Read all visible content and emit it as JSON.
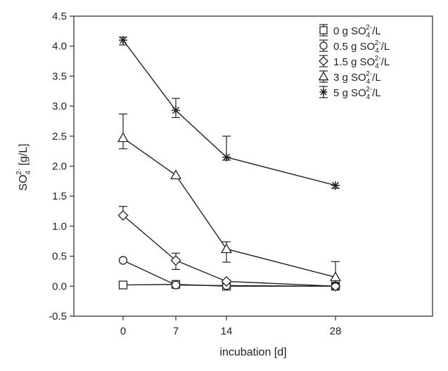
{
  "chart_data": {
    "type": "line",
    "title": "",
    "xlabel": "incubation [d]",
    "ylabel": {
      "base": "SO",
      "sub": "4",
      "sup": "2-",
      "unit": " [g/L]"
    },
    "x": [
      0,
      7,
      14,
      28
    ],
    "x_tick_labels": [
      "0",
      "7",
      "14",
      "28"
    ],
    "y_ticks": [
      "-0.5",
      "0.0",
      "0.5",
      "1.0",
      "1.5",
      "2.0",
      "2.5",
      "3.0",
      "3.5",
      "4.0",
      "4.5"
    ],
    "ylim": [
      -0.5,
      4.5
    ],
    "grid": false,
    "legend_position": "top-right",
    "series": [
      {
        "name": "0 g SO42-/L",
        "legend": {
          "pre": "0 g SO",
          "sub": "4",
          "sup": "2-",
          "post": "/L"
        },
        "marker": "square",
        "values": [
          0.02,
          0.03,
          0.0,
          0.0
        ],
        "err_upper": [
          0.0,
          0.0,
          0.0,
          0.0
        ],
        "err_lower": [
          0.0,
          0.0,
          0.0,
          0.0
        ]
      },
      {
        "name": "0.5 g SO42-/L",
        "legend": {
          "pre": "0.5 g SO",
          "sub": "4",
          "sup": "2-",
          "post": "/L"
        },
        "marker": "circle",
        "values": [
          0.43,
          0.02,
          0.01,
          0.0
        ],
        "err_upper": [
          0.0,
          0.0,
          0.0,
          0.0
        ],
        "err_lower": [
          0.0,
          0.0,
          0.0,
          0.0
        ]
      },
      {
        "name": "1.5 g SO42-/L",
        "legend": {
          "pre": "1.5 g SO",
          "sub": "4",
          "sup": "2-",
          "post": "/L"
        },
        "marker": "diamond",
        "values": [
          1.18,
          0.43,
          0.08,
          0.0
        ],
        "err_upper": [
          0.15,
          0.12,
          0.0,
          0.0
        ],
        "err_lower": [
          0.0,
          0.15,
          0.0,
          0.0
        ]
      },
      {
        "name": "3 g SO42-/L",
        "legend": {
          "pre": "3 g SO",
          "sub": "4",
          "sup": "2-",
          "post": "/L"
        },
        "marker": "triangle",
        "values": [
          2.47,
          1.85,
          0.62,
          0.15
        ],
        "err_upper": [
          0.4,
          0.0,
          0.12,
          0.26
        ],
        "err_lower": [
          0.18,
          0.0,
          0.22,
          0.1
        ]
      },
      {
        "name": "5 g SO42-/L",
        "legend": {
          "pre": "5 g SO",
          "sub": "4",
          "sup": "2-",
          "post": "/L"
        },
        "marker": "asterisk",
        "values": [
          4.1,
          2.93,
          2.15,
          1.68
        ],
        "err_upper": [
          0.05,
          0.2,
          0.35,
          0.0
        ],
        "err_lower": [
          0.08,
          0.12,
          0.05,
          0.05
        ]
      }
    ]
  }
}
